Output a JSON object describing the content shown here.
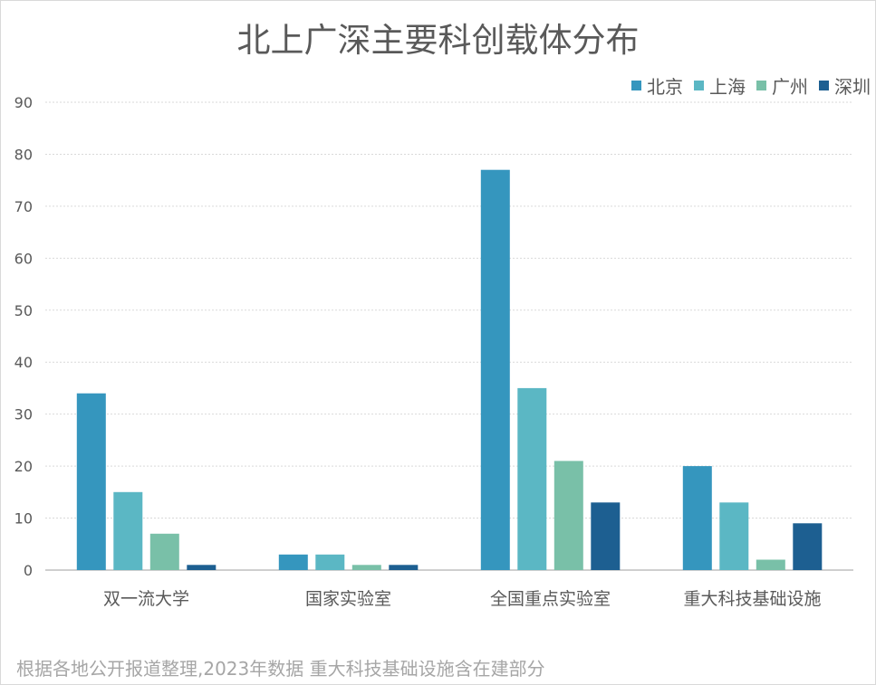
{
  "chart_data": {
    "type": "bar",
    "title": "北上广深主要科创载体分布",
    "categories": [
      "双一流大学",
      "国家实验室",
      "全国重点实验室",
      "重大科技基础设施"
    ],
    "series": [
      {
        "name": "北京",
        "color": "#3596be",
        "values": [
          34,
          3,
          77,
          20
        ]
      },
      {
        "name": "上海",
        "color": "#5bb7c4",
        "values": [
          15,
          3,
          35,
          13
        ]
      },
      {
        "name": "广州",
        "color": "#79c0a8",
        "values": [
          7,
          1,
          21,
          2
        ]
      },
      {
        "name": "深圳",
        "color": "#1d5f91",
        "values": [
          1,
          1,
          13,
          9
        ]
      }
    ],
    "ylim": [
      0,
      90
    ],
    "yticks": [
      "0",
      "10",
      "20",
      "30",
      "40",
      "50",
      "60",
      "70",
      "80",
      "90"
    ],
    "grid": true,
    "legend_position": "top-right",
    "footnote": "根据各地公开报道整理,2023年数据 重大科技基础设施含在建部分"
  }
}
